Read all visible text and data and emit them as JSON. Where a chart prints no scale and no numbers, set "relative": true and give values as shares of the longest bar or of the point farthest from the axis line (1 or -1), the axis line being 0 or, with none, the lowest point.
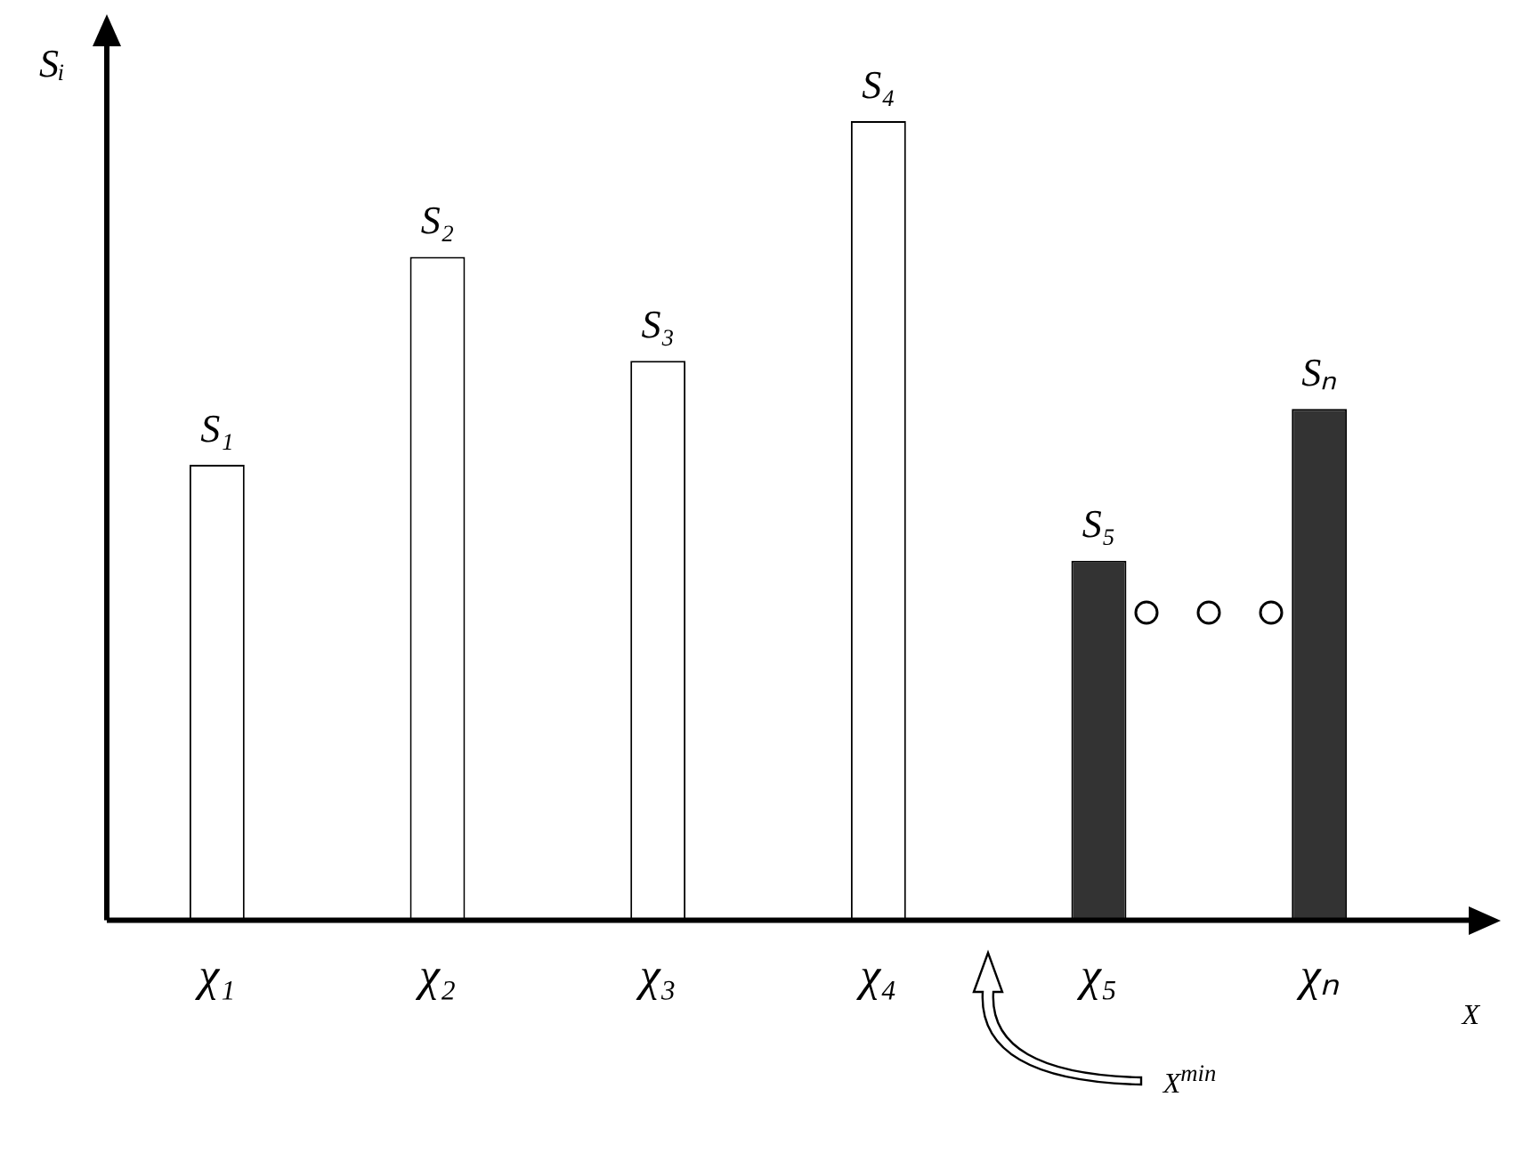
{
  "chart_data": {
    "type": "bar",
    "relative": true,
    "xlabel": "X",
    "ylabel": "Sᵢ",
    "categories": [
      "χ₁",
      "χ₂",
      "χ₃",
      "χ₄",
      "χ₅",
      "χₙ"
    ],
    "values": [
      0.57,
      0.83,
      0.7,
      1,
      0.45,
      0.64
    ],
    "colors": [
      "#ffffff",
      "#ffffff",
      "#ffffff",
      "#ffffff",
      "#333333",
      "#333333"
    ],
    "annotations": [
      "X$^{min}$",
      {
        "text": "S₁",
        "x": "χ₁",
        "y": 0.57
      },
      {
        "text": "S₂",
        "x": "χ₂",
        "y": 0.83
      },
      {
        "text": "S₃",
        "x": "χ₃",
        "y": 0.7
      },
      {
        "text": "S₄",
        "x": "χ₄",
        "y": 1
      },
      {
        "text": "S₅",
        "x": "χ₅",
        "y": 0.45
      },
      {
        "text": "Sₙ",
        "x": "χₙ",
        "y": 0.64
      }
    ],
    "grid": false,
    "legend": false
  }
}
